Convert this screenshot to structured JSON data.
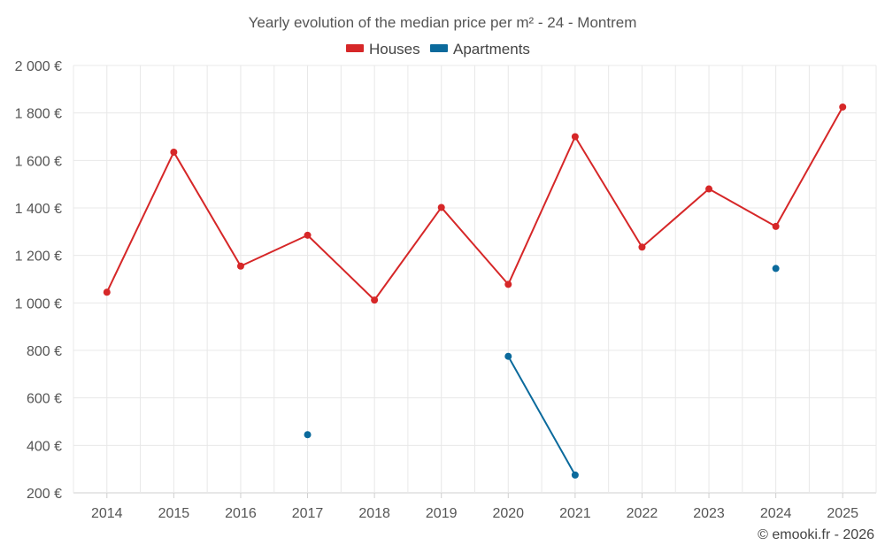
{
  "chart_data": {
    "type": "line",
    "title": "Yearly evolution of the median price per m² - 24 - Montrem",
    "categories": [
      "2014",
      "2015",
      "2016",
      "2017",
      "2018",
      "2019",
      "2020",
      "2021",
      "2022",
      "2023",
      "2024",
      "2025"
    ],
    "ylim": [
      200,
      2000
    ],
    "yticks": [
      200,
      400,
      600,
      800,
      1000,
      1200,
      1400,
      1600,
      1800,
      2000
    ],
    "ytick_labels": [
      "200 €",
      "400 €",
      "600 €",
      "800 €",
      "1 000 €",
      "1 200 €",
      "1 400 €",
      "1 600 €",
      "1 800 €",
      "2 000 €"
    ],
    "grid": true,
    "legend_position": "top-center",
    "series": [
      {
        "name": "Houses",
        "color": "#d62728",
        "values": [
          1045,
          1635,
          1155,
          1285,
          1012,
          1402,
          1078,
          1700,
          1235,
          1480,
          1322,
          1825
        ]
      },
      {
        "name": "Apartments",
        "color": "#0b6a9c",
        "values": [
          null,
          null,
          null,
          445,
          null,
          null,
          775,
          275,
          null,
          null,
          1145,
          null
        ]
      }
    ]
  },
  "footer": {
    "credit": "© emooki.fr - 2026"
  }
}
